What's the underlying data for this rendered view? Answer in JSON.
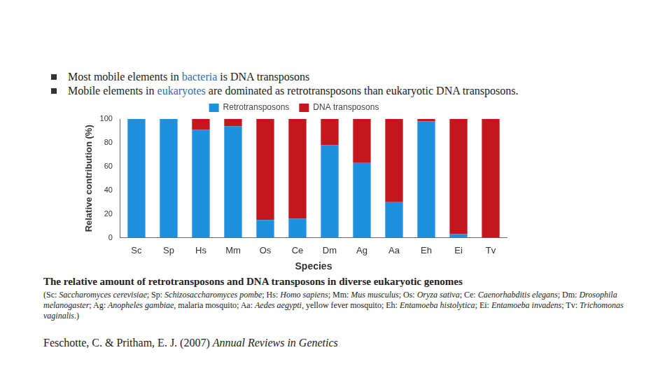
{
  "bullets": [
    [
      {
        "text": "Most mobile elements in "
      },
      {
        "text": "bacteria",
        "style": "highlight"
      },
      {
        "text": " is DNA transposons"
      }
    ],
    [
      {
        "text": "Mobile elements in "
      },
      {
        "text": "eukaryotes",
        "style": "highlight"
      },
      {
        "text": " are dominated as retrotransposons than eukaryotic DNA transposons."
      }
    ]
  ],
  "chart_data": {
    "type": "bar",
    "stacked": true,
    "x_label": "Species",
    "y_label": "Relative contribution (%)",
    "categories": [
      "Sc",
      "Sp",
      "Hs",
      "Mm",
      "Os",
      "Ce",
      "Dm",
      "Ag",
      "Aa",
      "Eh",
      "Ei",
      "Tv"
    ],
    "series": [
      {
        "name": "Retrotransposons",
        "color": "#1f8fe0",
        "values": [
          100,
          100,
          91,
          94,
          15,
          16,
          78,
          63,
          30,
          98,
          3,
          0
        ]
      },
      {
        "name": "DNA transposons",
        "color": "#c4161c",
        "values": [
          0,
          0,
          9,
          6,
          85,
          84,
          22,
          37,
          70,
          2,
          97,
          100
        ]
      }
    ],
    "ylim": [
      0,
      100
    ],
    "yticks": [
      0,
      20,
      40,
      60,
      80,
      100
    ],
    "grid": false,
    "legend": "top"
  },
  "caption": {
    "title": "The relative amount of retrotransposons and DNA transposons in diverse eukaryotic genomes",
    "note": [
      {
        "text": "(Sc: "
      },
      {
        "text": "Saccharomyces cerevisiae",
        "style": "italic"
      },
      {
        "text": "; Sp: "
      },
      {
        "text": "Schizosaccharomyces pombe",
        "style": "italic"
      },
      {
        "text": "; Hs: "
      },
      {
        "text": "Homo sapiens",
        "style": "italic"
      },
      {
        "text": "; Mm: "
      },
      {
        "text": "Mus musculus",
        "style": "italic"
      },
      {
        "text": "; Os: "
      },
      {
        "text": "Oryza sativa",
        "style": "italic"
      },
      {
        "text": "; Ce: "
      },
      {
        "text": "Caenorhabditis elegans",
        "style": "italic"
      },
      {
        "text": "; Dm: "
      },
      {
        "text": "Drosophila melanogaster",
        "style": "italic"
      },
      {
        "text": "; Ag: "
      },
      {
        "text": "Anopheles gambiae",
        "style": "italic"
      },
      {
        "text": ", malaria mosquito; Aa: "
      },
      {
        "text": "Aedes aegypti",
        "style": "italic"
      },
      {
        "text": ", yellow fever mosquito; Eh: "
      },
      {
        "text": "Entamoeba histolytica",
        "style": "italic"
      },
      {
        "text": "; Ei: "
      },
      {
        "text": "Entamoeba invadens",
        "style": "italic"
      },
      {
        "text": "; Tv: "
      },
      {
        "text": "Trichomonas vaginalis",
        "style": "italic"
      },
      {
        "text": ".)"
      }
    ]
  },
  "citation": [
    {
      "text": "Feschotte, C. & Pritham, E. J. (2007) "
    },
    {
      "text": "Annual Reviews in Genetics",
      "style": "italic"
    }
  ]
}
